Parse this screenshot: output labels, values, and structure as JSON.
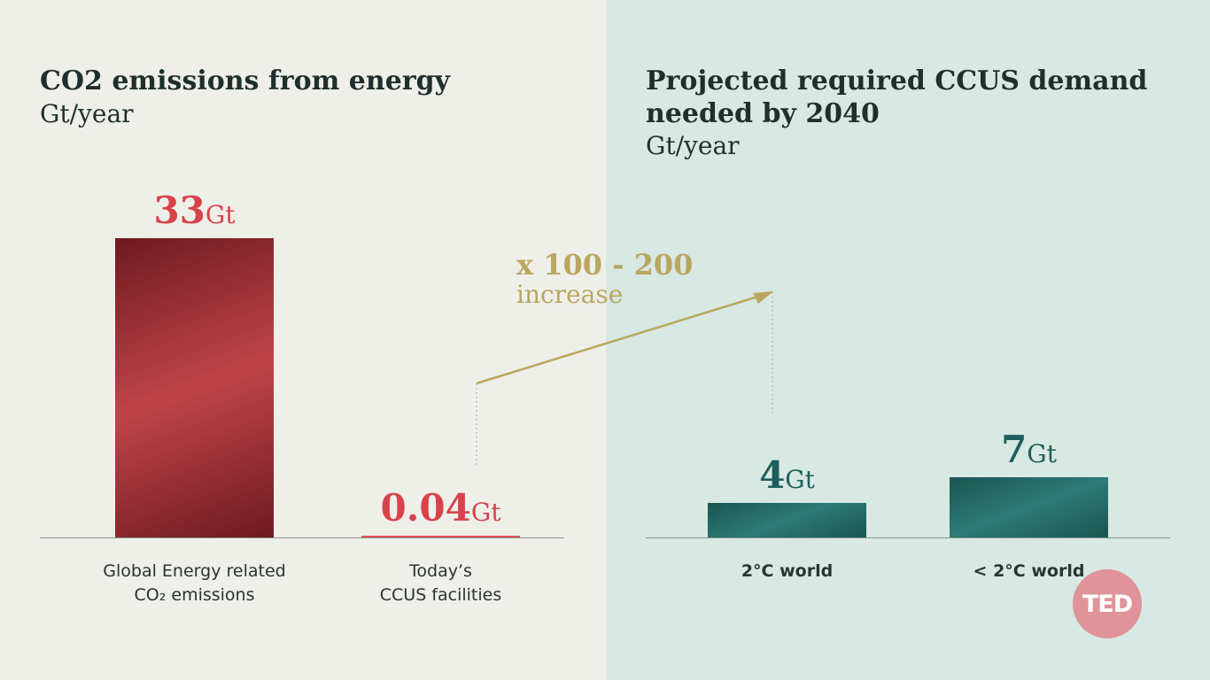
{
  "chart_data": [
    {
      "type": "bar",
      "title": "CO2 emissions from energy",
      "ylabel": "Gt/year",
      "categories": [
        "Global Energy related CO₂ emissions",
        "Today's CCUS facilities"
      ],
      "cat_lines": [
        [
          "Global Energy related",
          "CO₂ emissions"
        ],
        [
          "Today’s",
          "CCUS facilities"
        ]
      ],
      "values": [
        33,
        0.04
      ],
      "value_labels": [
        "33",
        "0.04"
      ],
      "unit": "Gt",
      "color": "#b8333a"
    },
    {
      "type": "bar",
      "title": "Projected required CCUS demand needed by 2040",
      "title_lines": [
        "Projected required CCUS demand",
        "needed by 2040"
      ],
      "ylabel": "Gt/year",
      "categories": [
        "2°C world",
        "< 2°C world"
      ],
      "values": [
        4,
        7
      ],
      "value_labels": [
        "4",
        "7"
      ],
      "unit": "Gt",
      "color": "#1f6461"
    }
  ],
  "annotation": {
    "multiplier": "x 100 - 200",
    "text": "increase",
    "color": "#b9a75f"
  },
  "logo": "TED"
}
